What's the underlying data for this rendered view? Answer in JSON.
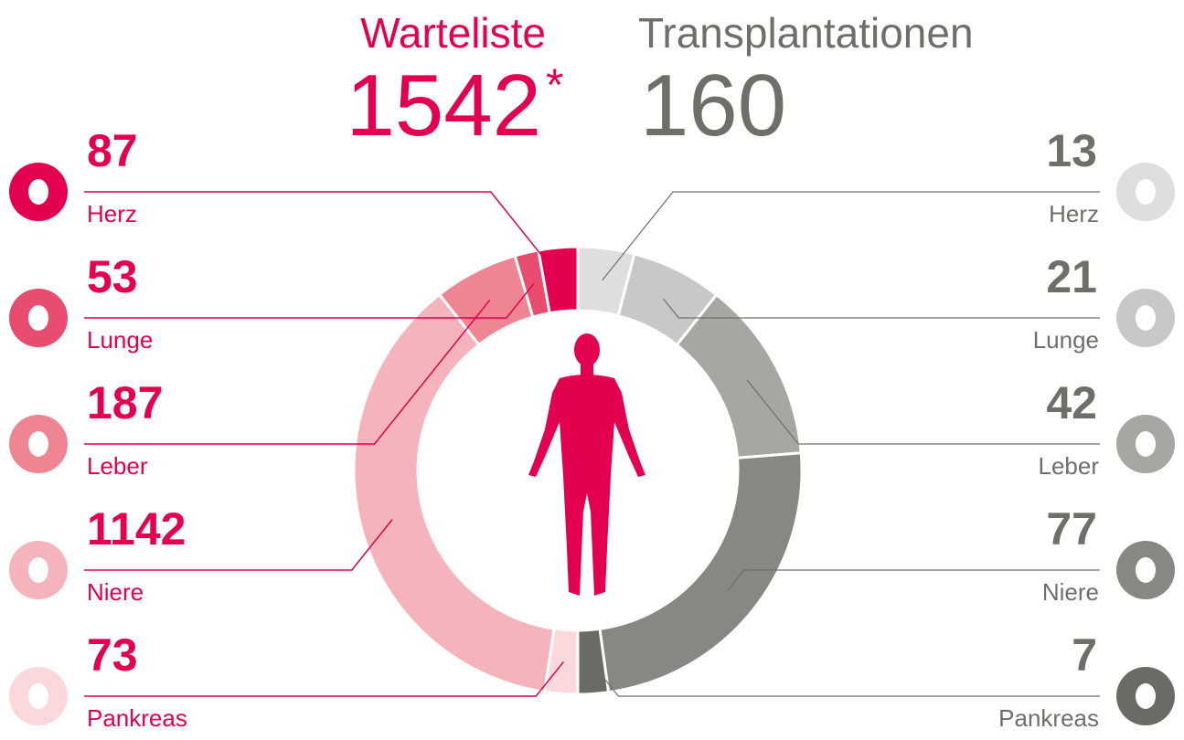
{
  "chart_data": {
    "type": "split-donut",
    "series": [
      {
        "name": "Warteliste",
        "total": 1542,
        "total_note": "*",
        "color": "#e2004f",
        "side": "left",
        "categories": [
          "Herz",
          "Lunge",
          "Leber",
          "Niere",
          "Pankreas"
        ],
        "values": [
          87,
          53,
          187,
          1142,
          73
        ],
        "colors": [
          "#e2004f",
          "#e84c6e",
          "#ef8593",
          "#f5b4bc",
          "#fad8dc"
        ]
      },
      {
        "name": "Transplantationen",
        "total": 160,
        "color": "#6f6f6a",
        "side": "right",
        "categories": [
          "Herz",
          "Lunge",
          "Leber",
          "Niere",
          "Pankreas"
        ],
        "values": [
          13,
          21,
          42,
          77,
          7
        ],
        "colors": [
          "#dededd",
          "#c8c8c6",
          "#a6a6a3",
          "#878783",
          "#6b6b66"
        ]
      }
    ]
  }
}
